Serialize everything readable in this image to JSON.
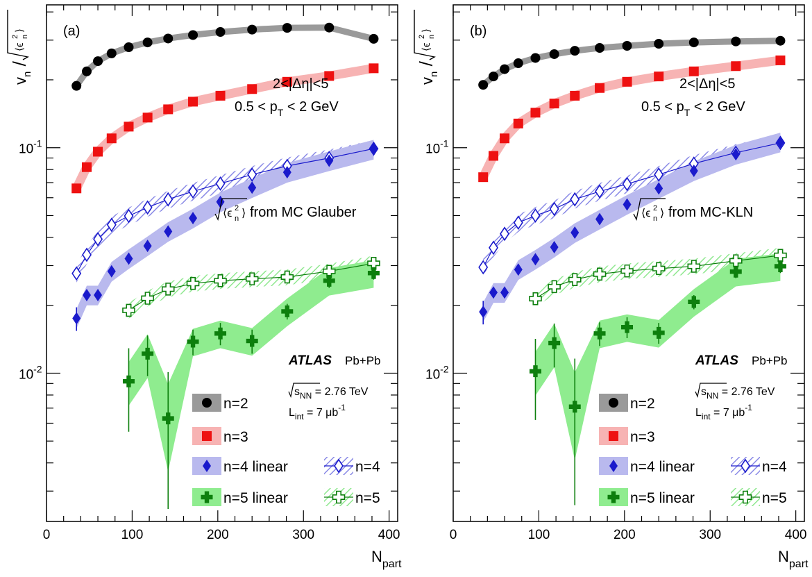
{
  "palette": {
    "n2": "#000000",
    "n2_band": "#9a9a9a",
    "n3": "#ee1111",
    "n3_band": "#f7b3b3",
    "n4": "#1a1acc",
    "n4_band": "#b9b9ee",
    "n4_hatch": "#8a8ae6",
    "n5": "#0d7f0d",
    "n5_band": "#8fec8f",
    "n5_hatch": "#90e890"
  },
  "chart_data": [
    {
      "type": "scatter",
      "panel_label": "(a)",
      "ylabel": "v_n / sqrt(<ε_n^2>)",
      "xlabel": "N_part",
      "xlim": [
        0,
        410
      ],
      "ylim": [
        0.0022,
        0.43
      ],
      "yscale": "log",
      "xticks": [
        "0",
        "100",
        "200",
        "300",
        "400"
      ],
      "yticks": [
        {
          "value": 0.1,
          "base": "10",
          "exp": "-1"
        },
        {
          "value": 0.01,
          "base": "10",
          "exp": "-2"
        }
      ],
      "annotations": {
        "eta": "2<|Δη|<5",
        "pt_pre": "0.5 < p",
        "pt_sub": "T",
        "pt_post": " < 2 GeV",
        "model": "from MC Glauber",
        "eps_label": "⟨ϵ",
        "eps_sub": "n",
        "eps_sup": "2",
        "eps_close": "⟩",
        "atlas": "ATLAS",
        "system": "Pb+Pb",
        "energy_pre": "s",
        "energy_sub": "NN",
        "energy_post": " = 2.76 TeV",
        "lumi_pre": "L",
        "lumi_sub": "int",
        "lumi_post": " = 7 μb",
        "lumi_sup": "-1"
      },
      "legend": [
        "n=2",
        "n=3",
        "n=4 linear",
        "n=4",
        "n=5 linear",
        "n=5"
      ],
      "series": [
        {
          "name": "n=2",
          "x": [
            35,
            47,
            60,
            76,
            96,
            118,
            142,
            171,
            203,
            240,
            281,
            330,
            382
          ],
          "y": [
            0.188,
            0.218,
            0.242,
            0.262,
            0.279,
            0.293,
            0.305,
            0.316,
            0.326,
            0.334,
            0.34,
            0.341,
            0.304
          ]
        },
        {
          "name": "n=3",
          "x": [
            35,
            47,
            60,
            76,
            96,
            118,
            142,
            171,
            203,
            240,
            281,
            330,
            382
          ],
          "y": [
            0.066,
            0.082,
            0.096,
            0.11,
            0.124,
            0.136,
            0.148,
            0.16,
            0.17,
            0.182,
            0.196,
            0.208,
            0.225
          ]
        },
        {
          "name": "n=4 linear",
          "x": [
            35,
            47,
            60,
            76,
            96,
            118,
            142,
            171,
            203,
            240,
            281,
            330,
            382
          ],
          "y": [
            0.0175,
            0.0222,
            0.0222,
            0.0283,
            0.0322,
            0.0367,
            0.0425,
            0.0487,
            0.0575,
            0.0665,
            0.0778,
            0.0875,
            0.0985
          ]
        },
        {
          "name": "n=4",
          "x": [
            35,
            47,
            60,
            76,
            96,
            118,
            142,
            171,
            203,
            240,
            281,
            330,
            382
          ],
          "y": [
            0.0277,
            0.0335,
            0.0393,
            0.0455,
            0.0498,
            0.0543,
            0.059,
            0.064,
            0.0693,
            0.076,
            0.083,
            0.09,
            0.099
          ]
        },
        {
          "name": "n=5 linear",
          "x": [
            96,
            118,
            142,
            171,
            203,
            240,
            281,
            330,
            382
          ],
          "y": [
            0.0092,
            0.0122,
            0.0063,
            0.0138,
            0.015,
            0.0139,
            0.0188,
            0.0257,
            0.0278
          ],
          "yerr": [
            0.0037,
            0.0025,
            0.0038,
            0.0018,
            0.0017,
            0.0017,
            0.0015,
            0.0018,
            0.0018
          ]
        },
        {
          "name": "n=5",
          "x": [
            96,
            118,
            142,
            171,
            203,
            240,
            281,
            330,
            382
          ],
          "y": [
            0.019,
            0.0215,
            0.0236,
            0.025,
            0.0257,
            0.0262,
            0.0267,
            0.0283,
            0.0307
          ]
        }
      ]
    },
    {
      "type": "scatter",
      "panel_label": "(b)",
      "ylabel": "v_n / sqrt(<ε_n^2>)",
      "xlabel": "N_part",
      "xlim": [
        0,
        410
      ],
      "ylim": [
        0.0022,
        0.43
      ],
      "yscale": "log",
      "xticks": [
        "0",
        "100",
        "200",
        "300",
        "400"
      ],
      "yticks": [
        {
          "value": 0.1,
          "base": "10",
          "exp": "-1"
        },
        {
          "value": 0.01,
          "base": "10",
          "exp": "-2"
        }
      ],
      "annotations": {
        "eta": "2<|Δη|<5",
        "pt_pre": "0.5 < p",
        "pt_sub": "T",
        "pt_post": " < 2 GeV",
        "model": "from MC-KLN",
        "eps_label": "⟨ϵ",
        "eps_sub": "n",
        "eps_sup": "2",
        "eps_close": "⟩",
        "atlas": "ATLAS",
        "system": "Pb+Pb",
        "energy_pre": "s",
        "energy_sub": "NN",
        "energy_post": " = 2.76 TeV",
        "lumi_pre": "L",
        "lumi_sub": "int",
        "lumi_post": " = 7 μb",
        "lumi_sup": "-1"
      },
      "legend": [
        "n=2",
        "n=3",
        "n=4 linear",
        "n=4",
        "n=5 linear",
        "n=5"
      ],
      "series": [
        {
          "name": "n=2",
          "x": [
            35,
            47,
            60,
            76,
            96,
            118,
            142,
            171,
            203,
            240,
            281,
            330,
            382
          ],
          "y": [
            0.19,
            0.207,
            0.223,
            0.237,
            0.25,
            0.26,
            0.269,
            0.277,
            0.283,
            0.289,
            0.293,
            0.296,
            0.298
          ]
        },
        {
          "name": "n=3",
          "x": [
            35,
            47,
            60,
            76,
            96,
            118,
            142,
            171,
            203,
            240,
            281,
            330,
            382
          ],
          "y": [
            0.074,
            0.092,
            0.11,
            0.128,
            0.143,
            0.157,
            0.17,
            0.184,
            0.196,
            0.207,
            0.218,
            0.23,
            0.244
          ]
        },
        {
          "name": "n=4 linear",
          "x": [
            35,
            47,
            60,
            76,
            96,
            118,
            142,
            171,
            203,
            240,
            281,
            330,
            382
          ],
          "y": [
            0.0187,
            0.0228,
            0.0228,
            0.0288,
            0.032,
            0.0362,
            0.042,
            0.0482,
            0.056,
            0.066,
            0.079,
            0.0935,
            0.106
          ]
        },
        {
          "name": "n=4",
          "x": [
            35,
            47,
            60,
            76,
            96,
            118,
            142,
            171,
            203,
            240,
            281,
            330,
            382
          ],
          "y": [
            0.0295,
            0.036,
            0.0415,
            0.0465,
            0.05,
            0.0535,
            0.059,
            0.064,
            0.069,
            0.076,
            0.085,
            0.095,
            0.105
          ]
        },
        {
          "name": "n=5 linear",
          "x": [
            96,
            118,
            142,
            171,
            203,
            240,
            281,
            330,
            382
          ],
          "y": [
            0.0102,
            0.0136,
            0.0071,
            0.015,
            0.016,
            0.0151,
            0.0207,
            0.0282,
            0.0298
          ],
          "yerr": [
            0.004,
            0.003,
            0.0045,
            0.0018,
            0.0017,
            0.0016,
            0.0015,
            0.0018,
            0.002
          ]
        },
        {
          "name": "n=5",
          "x": [
            96,
            118,
            142,
            171,
            203,
            240,
            281,
            330,
            382
          ],
          "y": [
            0.0214,
            0.0242,
            0.026,
            0.0275,
            0.0284,
            0.0291,
            0.0298,
            0.0315,
            0.0333
          ]
        }
      ]
    }
  ]
}
